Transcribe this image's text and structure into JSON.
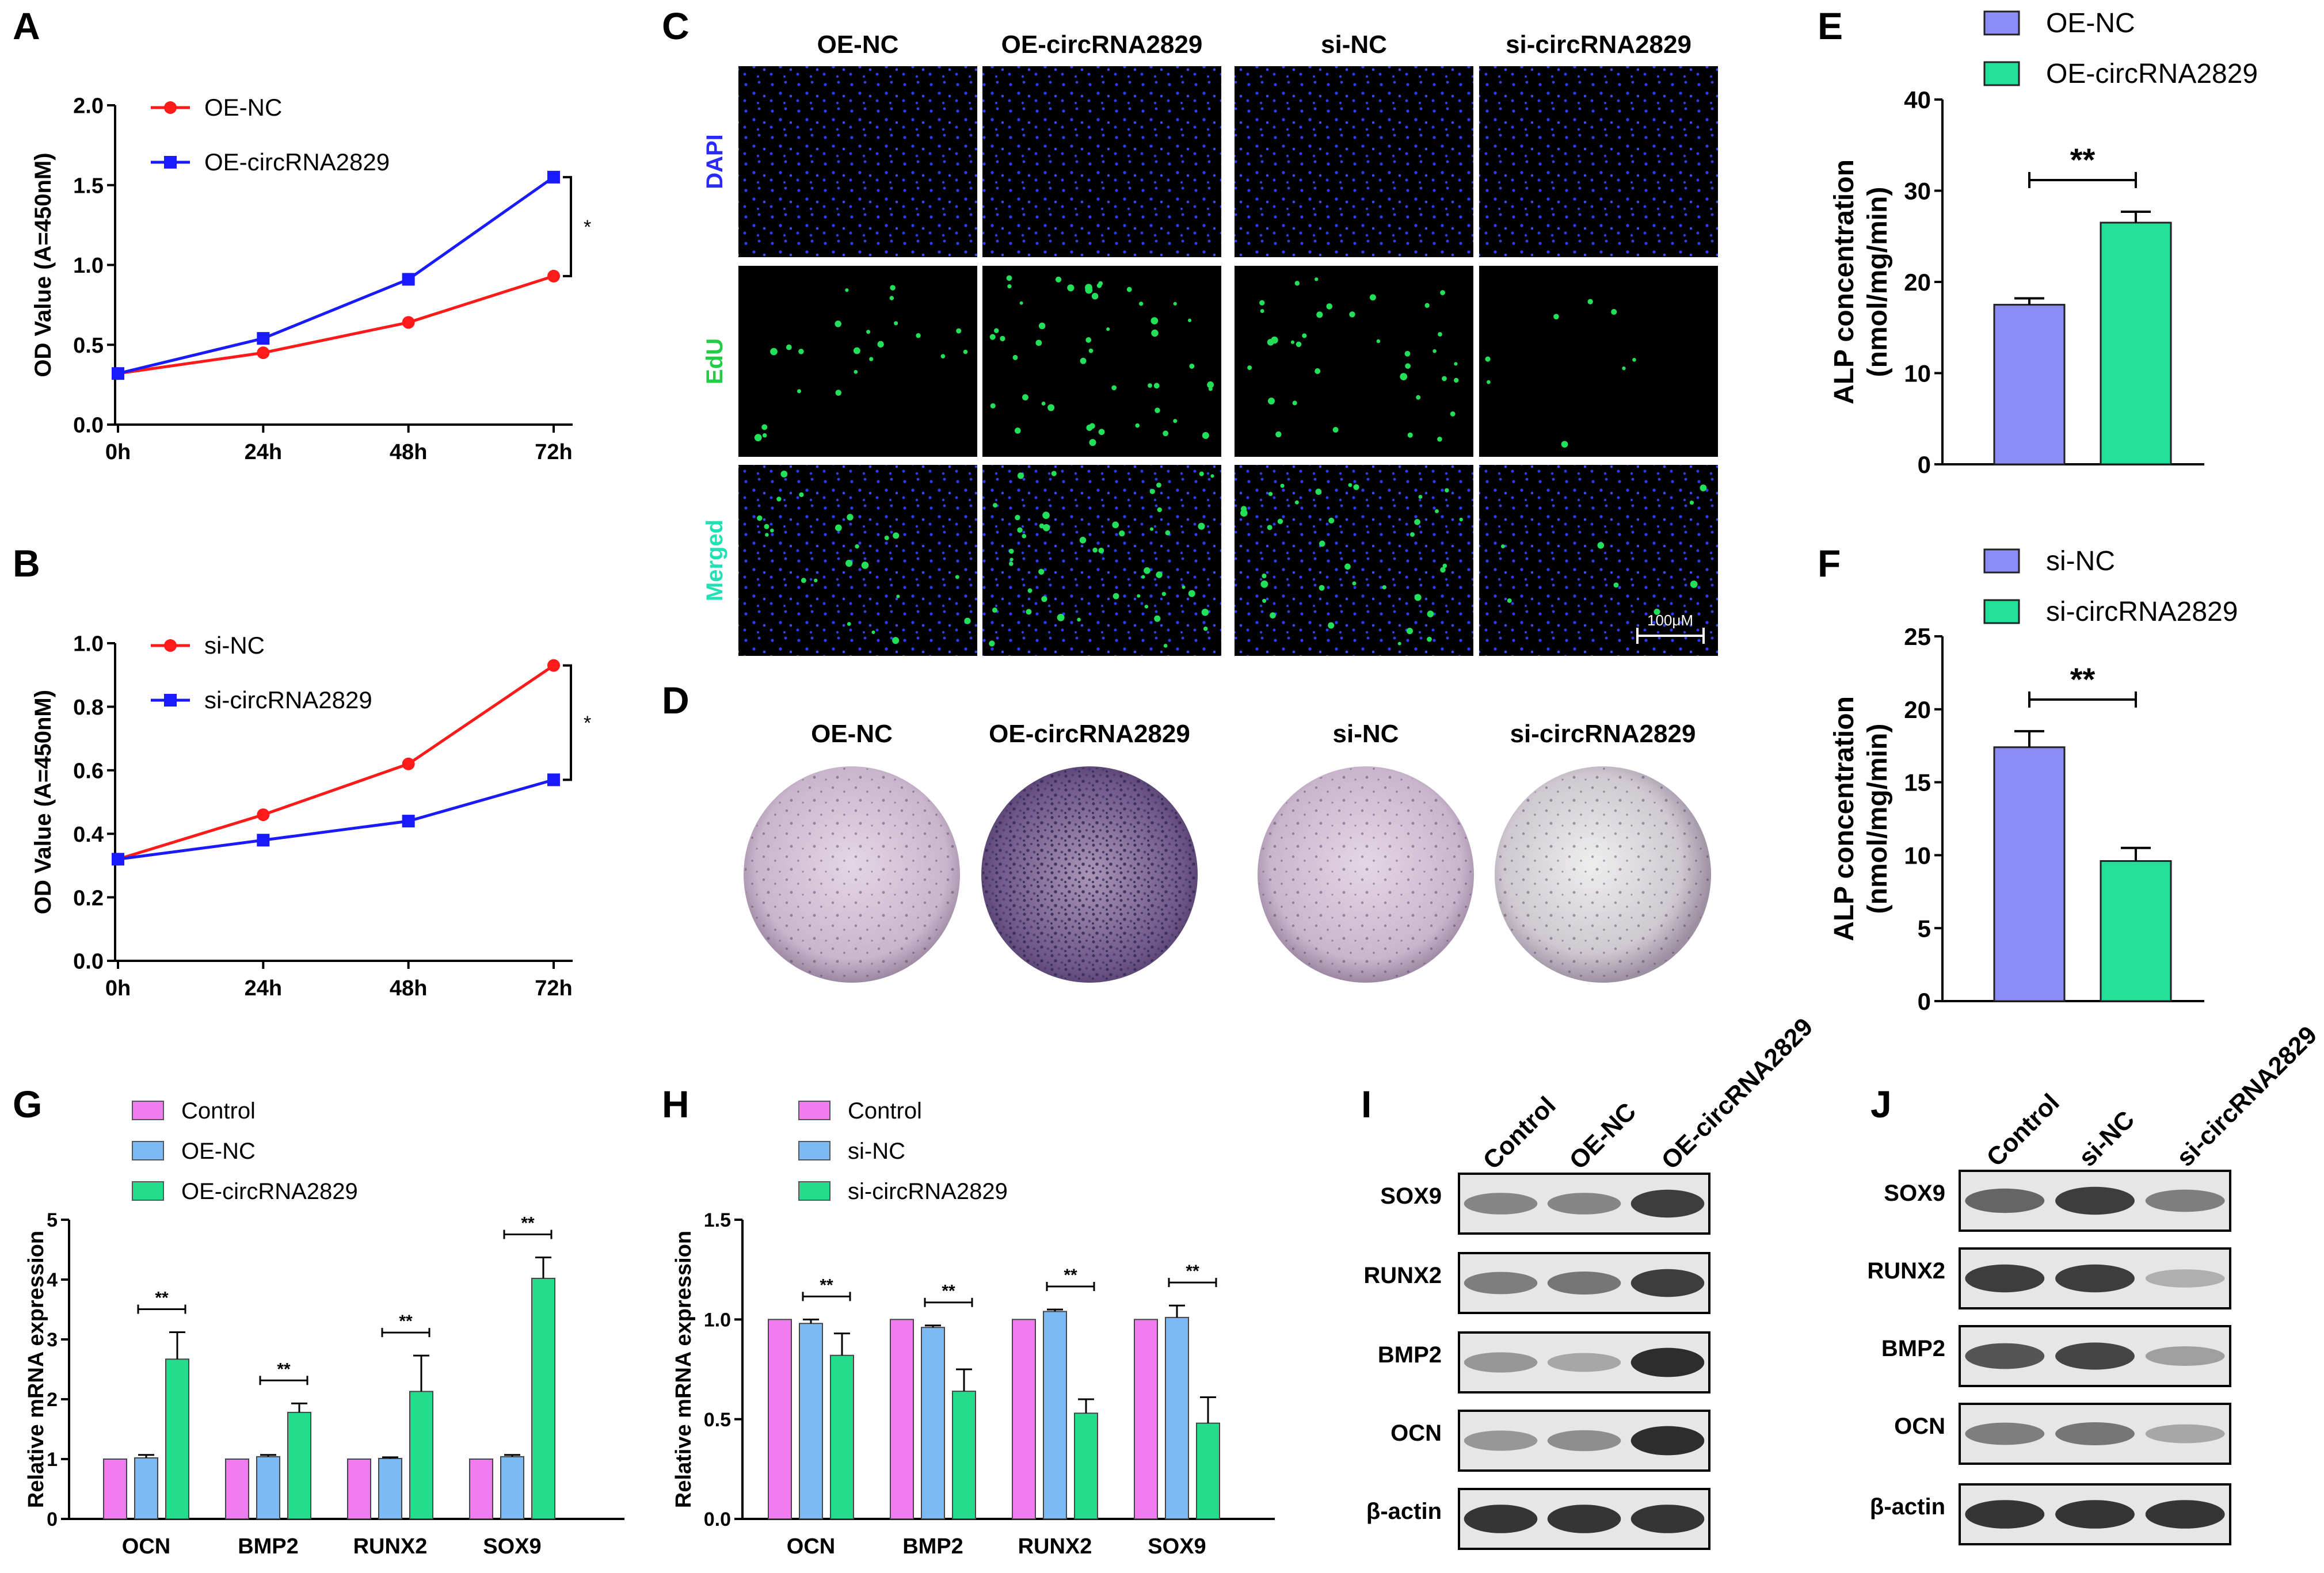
{
  "panel_labels": [
    "A",
    "B",
    "C",
    "D",
    "E",
    "F",
    "G",
    "H",
    "I",
    "J"
  ],
  "colors": {
    "red": "#ff1a1a",
    "blue": "#1a1aff",
    "lavender": "#8c8cf5",
    "mint": "#22e09a",
    "pink": "#f07cf0",
    "skyblue": "#7cbaf5",
    "green": "#22dd8c",
    "dapi_label": "#2a2aff",
    "edu_label": "#22cc44",
    "merged_label": "#22e0b5"
  },
  "chart_data": [
    {
      "id": "A",
      "type": "line",
      "categories": [
        "0h",
        "24h",
        "48h",
        "72h"
      ],
      "series": [
        {
          "name": "OE-NC",
          "values": [
            0.32,
            0.45,
            0.64,
            0.93
          ],
          "color": "#ff1a1a"
        },
        {
          "name": "OE-circRNA2829",
          "values": [
            0.32,
            0.54,
            0.91,
            1.55
          ],
          "color": "#1a1aff"
        }
      ],
      "ylabel": "OD Value (A=450nM)",
      "ylim": [
        0,
        2.0
      ],
      "yticks": [
        "0.0",
        "0.5",
        "1.0",
        "1.5",
        "2.0"
      ],
      "ytick_values": [
        0,
        0.5,
        1.0,
        1.5,
        2.0
      ],
      "significance": "*"
    },
    {
      "id": "B",
      "type": "line",
      "categories": [
        "0h",
        "24h",
        "48h",
        "72h"
      ],
      "series": [
        {
          "name": "si-NC",
          "values": [
            0.32,
            0.46,
            0.62,
            0.93
          ],
          "color": "#ff1a1a"
        },
        {
          "name": "si-circRNA2829",
          "values": [
            0.32,
            0.38,
            0.44,
            0.57
          ],
          "color": "#1a1aff"
        }
      ],
      "ylabel": "OD Value (A=450nM)",
      "ylim": [
        0,
        1.0
      ],
      "yticks": [
        "0.0",
        "0.2",
        "0.4",
        "0.6",
        "0.8",
        "1.0"
      ],
      "ytick_values": [
        0,
        0.2,
        0.4,
        0.6,
        0.8,
        1.0
      ],
      "significance": "*"
    },
    {
      "id": "E",
      "type": "bar",
      "categories": [
        "OE-NC",
        "OE-circRNA2829"
      ],
      "values": [
        17.5,
        26.5
      ],
      "errors": [
        0.7,
        1.2
      ],
      "colors": [
        "#8c8cf5",
        "#22e09a"
      ],
      "ylabel": [
        "ALP concentration",
        "(nmol/mg/min)"
      ],
      "ylim": [
        0,
        40
      ],
      "yticks": [
        "0",
        "10",
        "20",
        "30",
        "40"
      ],
      "ytick_values": [
        0,
        10,
        20,
        30,
        40
      ],
      "significance": "**"
    },
    {
      "id": "F",
      "type": "bar",
      "categories": [
        "si-NC",
        "si-circRNA2829"
      ],
      "values": [
        17.4,
        9.6
      ],
      "errors": [
        1.1,
        0.9
      ],
      "colors": [
        "#8c8cf5",
        "#22e09a"
      ],
      "ylabel": [
        "ALP concentration",
        "(nmol/mg/min)"
      ],
      "ylim": [
        0,
        25
      ],
      "yticks": [
        "0",
        "5",
        "10",
        "15",
        "20",
        "25"
      ],
      "ytick_values": [
        0,
        5,
        10,
        15,
        20,
        25
      ],
      "significance": "**"
    },
    {
      "id": "G",
      "type": "bar",
      "categories": [
        "OCN",
        "BMP2",
        "RUNX2",
        "SOX9"
      ],
      "series": [
        {
          "name": "Control",
          "values": [
            1.0,
            1.0,
            1.0,
            1.0
          ],
          "errors": [
            0,
            0,
            0,
            0
          ],
          "color": "#f07cf0"
        },
        {
          "name": "OE-NC",
          "values": [
            1.02,
            1.04,
            1.01,
            1.04
          ],
          "errors": [
            0.05,
            0.03,
            0.02,
            0.03
          ],
          "color": "#7cbaf5"
        },
        {
          "name": "OE-circRNA2829",
          "values": [
            2.67,
            1.78,
            2.13,
            4.02
          ],
          "errors": [
            0.45,
            0.15,
            0.6,
            0.35
          ],
          "color": "#22dd8c"
        }
      ],
      "ylabel": "Relative mRNA expression",
      "ylim": [
        0,
        5
      ],
      "yticks": [
        "0",
        "1",
        "2",
        "3",
        "4",
        "5"
      ],
      "ytick_values": [
        0,
        1,
        2,
        3,
        4,
        5
      ],
      "significance": "**"
    },
    {
      "id": "H",
      "type": "bar",
      "categories": [
        "OCN",
        "BMP2",
        "RUNX2",
        "SOX9"
      ],
      "series": [
        {
          "name": "Control",
          "values": [
            1.0,
            1.0,
            1.0,
            1.0
          ],
          "errors": [
            0,
            0,
            0,
            0
          ],
          "color": "#f07cf0"
        },
        {
          "name": "si-NC",
          "values": [
            0.98,
            0.96,
            1.04,
            1.01
          ],
          "errors": [
            0.02,
            0.01,
            0.01,
            0.06
          ],
          "color": "#7cbaf5"
        },
        {
          "name": "si-circRNA2829",
          "values": [
            0.82,
            0.64,
            0.53,
            0.48
          ],
          "errors": [
            0.11,
            0.11,
            0.07,
            0.13
          ],
          "color": "#22dd8c"
        }
      ],
      "ylabel": "Relative mRNA expression",
      "ylim": [
        0,
        1.5
      ],
      "yticks": [
        "0.0",
        "0.5",
        "1.0",
        "1.5"
      ],
      "ytick_values": [
        0,
        0.5,
        1.0,
        1.5
      ],
      "significance": "**"
    }
  ],
  "panel_C": {
    "columns": [
      "OE-NC",
      "OE-circRNA2829",
      "si-NC",
      "si-circRNA2829"
    ],
    "rows": [
      "DAPI",
      "EdU",
      "Merged"
    ],
    "scale_bar": "100μM"
  },
  "panel_D": {
    "labels": [
      "OE-NC",
      "OE-circRNA2829",
      "si-NC",
      "si-circRNA2829"
    ]
  },
  "panel_I": {
    "lanes": [
      "Control",
      "OE-NC",
      "OE-circRNA2829"
    ],
    "proteins": [
      "SOX9",
      "RUNX2",
      "BMP2",
      "OCN",
      "β-actin"
    ]
  },
  "panel_J": {
    "lanes": [
      "Control",
      "si-NC",
      "si-circRNA2829"
    ],
    "proteins": [
      "SOX9",
      "RUNX2",
      "BMP2",
      "OCN",
      "β-actin"
    ]
  }
}
